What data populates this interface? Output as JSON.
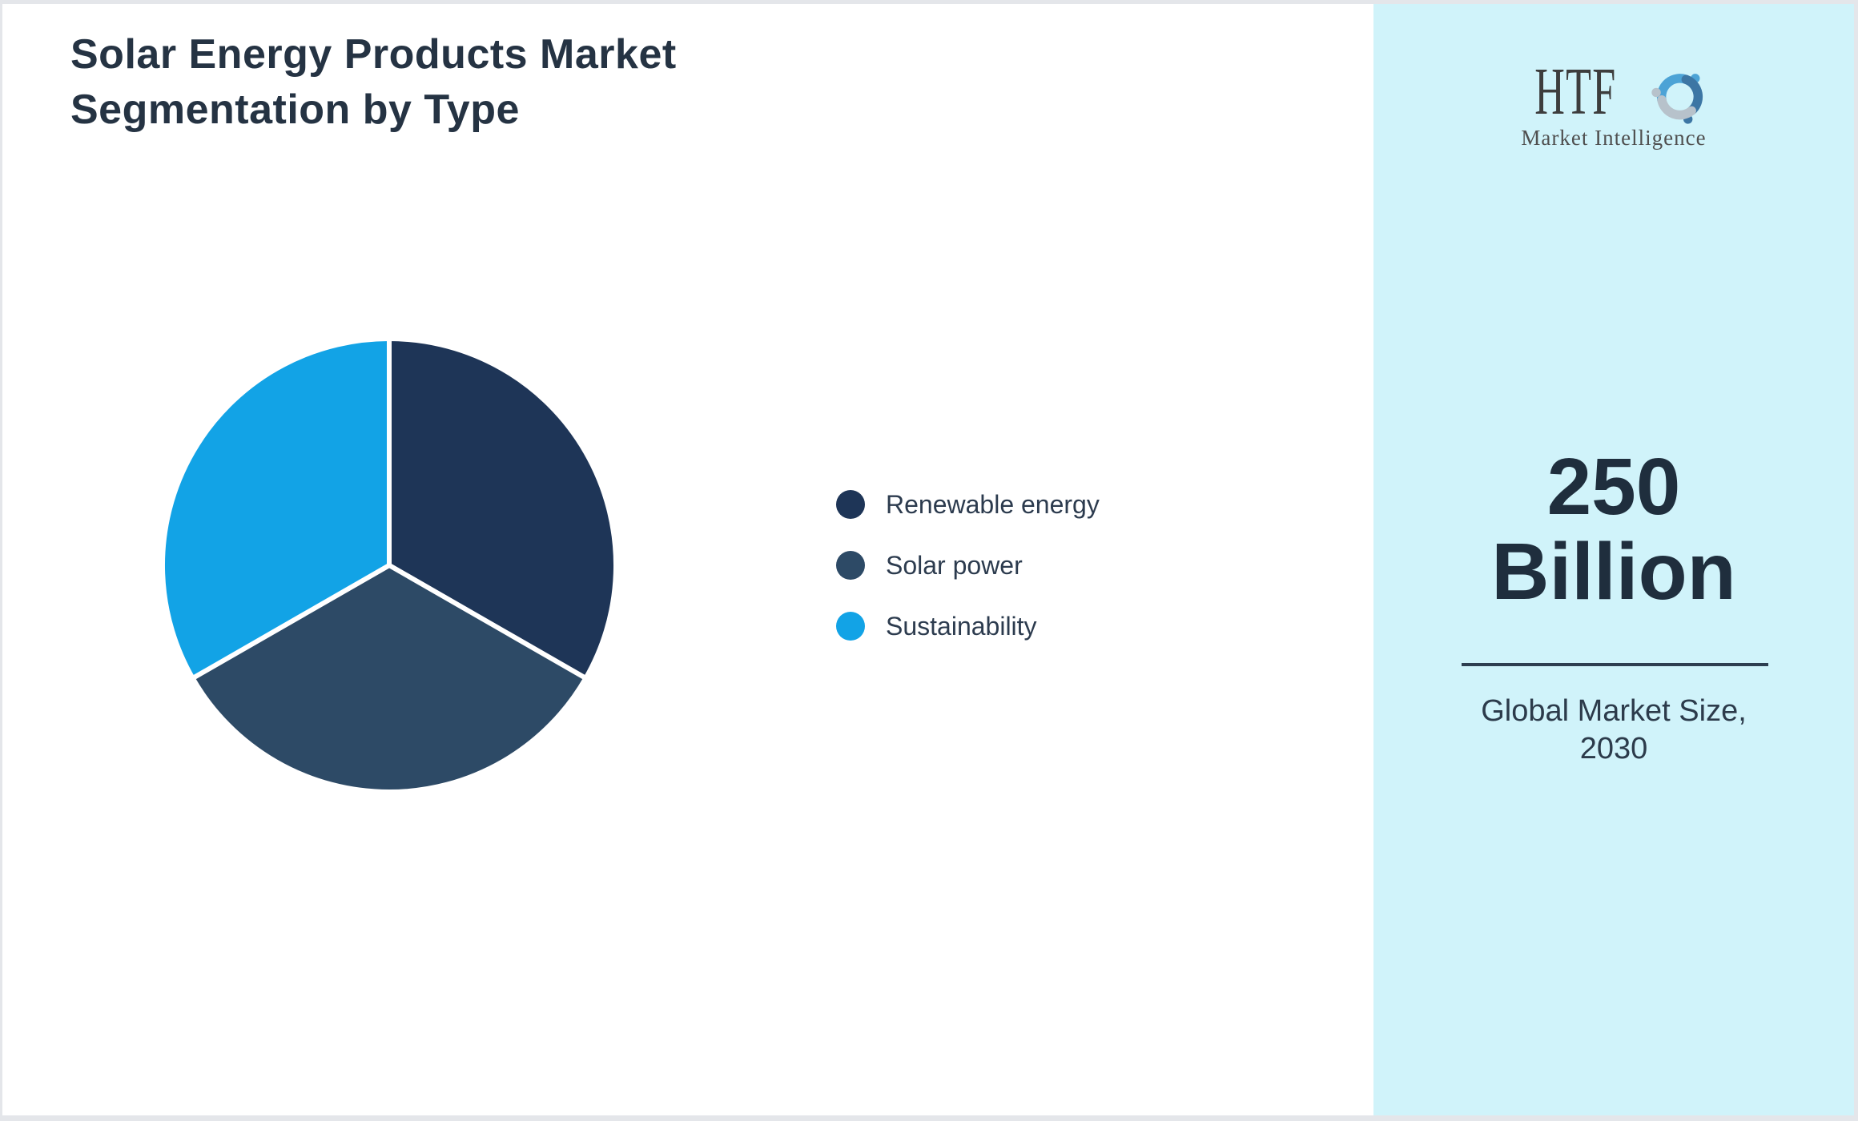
{
  "page": {
    "background": "#ffffff",
    "frame_color": "#e4e6ea"
  },
  "header": {
    "title_line1": "Solar Energy Products Market",
    "title_line2": "Segmentation by Type",
    "title_color": "#253343"
  },
  "chart_data": {
    "type": "pie",
    "title": "Solar Energy Products Market Segmentation by Type",
    "categories": [
      "Renewable energy",
      "Solar power",
      "Sustainability"
    ],
    "values": [
      33.3,
      33.4,
      33.3
    ],
    "colors": [
      "#1e3557",
      "#2d4a66",
      "#12a3e6"
    ],
    "start_angle_deg": 0,
    "direction": "clockwise",
    "slice_gap_color": "#ffffff",
    "data_labels_shown": false,
    "legend_position": "right"
  },
  "legend": {
    "items": [
      {
        "label": "Renewable energy",
        "color": "#1e3557"
      },
      {
        "label": "Solar power",
        "color": "#2d4a66"
      },
      {
        "label": "Sustainability",
        "color": "#12a3e6"
      }
    ]
  },
  "sidebar": {
    "background": "#d0f3fa",
    "logo": {
      "text": "HTF",
      "subtext": "Market Intelligence",
      "text_color": "#3d3d3d",
      "swirl_colors": [
        "#4ca3d6",
        "#3c76a4",
        "#b7c2cb"
      ]
    },
    "stat_value_line1": "250",
    "stat_value_line2": "Billion",
    "divider_color": "#2d3e50",
    "stat_label_line1": "Global Market Size,",
    "stat_label_line2": "2030"
  }
}
